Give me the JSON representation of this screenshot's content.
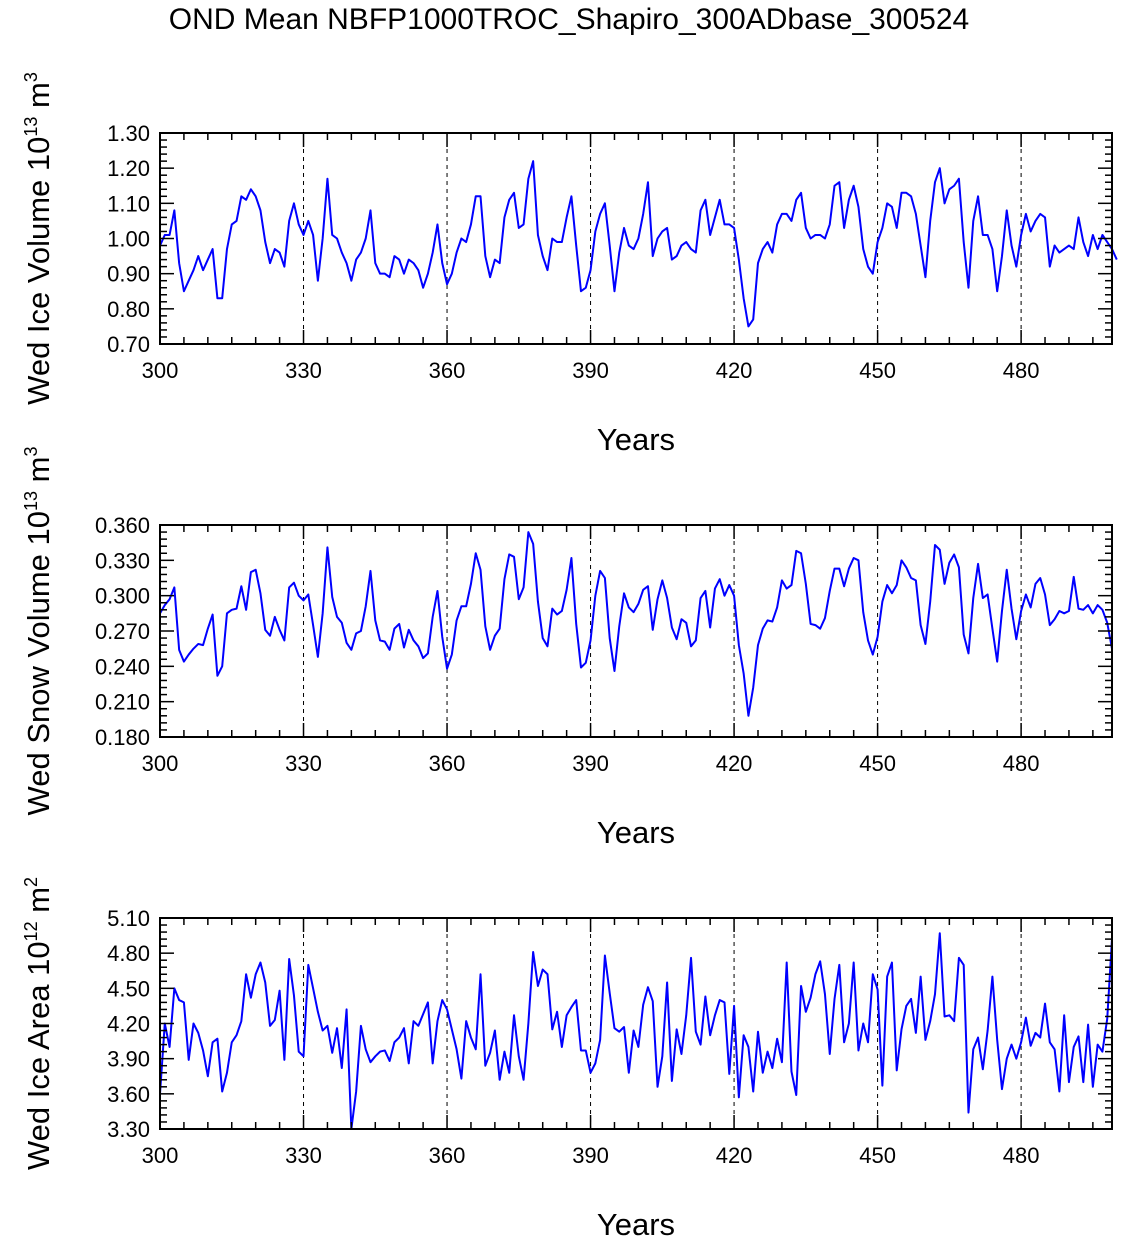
{
  "title": "OND Mean NBFP1000TROC_Shapiro_300ADbase_300524",
  "chart_data": [
    {
      "type": "line",
      "ylabel_main": "Wed Ice Volume 10",
      "ylabel_exp": "13",
      "ylabel_unit": " m",
      "ylabel_unit_exp": "3",
      "xlabel": "Years",
      "xlim": [
        300,
        499
      ],
      "ylim": [
        0.7,
        1.3
      ],
      "yticks": [
        "0.70",
        "0.80",
        "0.90",
        "1.00",
        "1.10",
        "1.20",
        "1.30"
      ],
      "ytick_values": [
        0.7,
        0.8,
        0.9,
        1.0,
        1.1,
        1.2,
        1.3
      ],
      "xticks": [
        "300",
        "330",
        "360",
        "390",
        "420",
        "450",
        "480"
      ],
      "xtick_values": [
        300,
        330,
        360,
        390,
        420,
        450,
        480
      ],
      "vlines": [
        330,
        360,
        390,
        420,
        450,
        480
      ],
      "line_color": "#0000ff",
      "series": [
        {
          "name": "Wed Ice Volume",
          "x_start": 300,
          "values": [
            0.98,
            1.01,
            1.01,
            1.08,
            0.93,
            0.85,
            0.88,
            0.91,
            0.95,
            0.91,
            0.94,
            0.97,
            0.83,
            0.83,
            0.97,
            1.04,
            1.05,
            1.12,
            1.11,
            1.14,
            1.12,
            1.08,
            0.99,
            0.93,
            0.97,
            0.96,
            0.92,
            1.05,
            1.1,
            1.04,
            1.01,
            1.05,
            1.01,
            0.88,
            1.0,
            1.17,
            1.01,
            1.0,
            0.96,
            0.93,
            0.88,
            0.94,
            0.96,
            1.0,
            1.08,
            0.93,
            0.9,
            0.9,
            0.89,
            0.95,
            0.94,
            0.9,
            0.94,
            0.93,
            0.91,
            0.86,
            0.9,
            0.96,
            1.04,
            0.93,
            0.87,
            0.9,
            0.96,
            1.0,
            0.99,
            1.04,
            1.12,
            1.12,
            0.95,
            0.89,
            0.94,
            0.93,
            1.06,
            1.11,
            1.13,
            1.03,
            1.04,
            1.17,
            1.22,
            1.01,
            0.95,
            0.91,
            1.0,
            0.99,
            0.99,
            1.06,
            1.12,
            0.98,
            0.85,
            0.86,
            0.91,
            1.02,
            1.07,
            1.1,
            0.98,
            0.85,
            0.96,
            1.03,
            0.98,
            0.97,
            1.0,
            1.07,
            1.16,
            0.95,
            1.0,
            1.02,
            1.03,
            0.94,
            0.95,
            0.98,
            0.99,
            0.97,
            0.96,
            1.08,
            1.11,
            1.01,
            1.06,
            1.11,
            1.04,
            1.04,
            1.03,
            0.94,
            0.83,
            0.75,
            0.77,
            0.93,
            0.97,
            0.99,
            0.96,
            1.04,
            1.07,
            1.07,
            1.05,
            1.11,
            1.13,
            1.03,
            1.0,
            1.01,
            1.01,
            1.0,
            1.04,
            1.15,
            1.16,
            1.03,
            1.11,
            1.15,
            1.09,
            0.97,
            0.92,
            0.9,
            0.99,
            1.03,
            1.1,
            1.09,
            1.03,
            1.13,
            1.13,
            1.12,
            1.07,
            0.98,
            0.89,
            1.05,
            1.16,
            1.2,
            1.1,
            1.14,
            1.15,
            1.17,
            0.99,
            0.86,
            1.05,
            1.12,
            1.01,
            1.01,
            0.97,
            0.85,
            0.95,
            1.08,
            0.98,
            0.92,
            1.01,
            1.07,
            1.02,
            1.05,
            1.07,
            1.06,
            0.92,
            0.98,
            0.96,
            0.97,
            0.98,
            0.97,
            1.06,
            0.99,
            0.95,
            1.01,
            0.97,
            1.01,
            0.99,
            0.97,
            0.94
          ]
        }
      ]
    },
    {
      "type": "line",
      "ylabel_main": "Wed Snow Volume 10",
      "ylabel_exp": "13",
      "ylabel_unit": " m",
      "ylabel_unit_exp": "3",
      "xlabel": "Years",
      "xlim": [
        300,
        499
      ],
      "ylim": [
        0.18,
        0.36
      ],
      "yticks": [
        "0.180",
        "0.210",
        "0.240",
        "0.270",
        "0.300",
        "0.330",
        "0.360"
      ],
      "ytick_values": [
        0.18,
        0.21,
        0.24,
        0.27,
        0.3,
        0.33,
        0.36
      ],
      "xticks": [
        "300",
        "330",
        "360",
        "390",
        "420",
        "450",
        "480"
      ],
      "xtick_values": [
        300,
        330,
        360,
        390,
        420,
        450,
        480
      ],
      "vlines": [
        330,
        360,
        390,
        420,
        450,
        480
      ],
      "line_color": "#0000ff",
      "series": [
        {
          "name": "Wed Snow Volume",
          "x_start": 300,
          "values": [
            0.285,
            0.292,
            0.297,
            0.307,
            0.254,
            0.244,
            0.25,
            0.255,
            0.259,
            0.258,
            0.272,
            0.284,
            0.232,
            0.24,
            0.285,
            0.288,
            0.289,
            0.308,
            0.288,
            0.32,
            0.322,
            0.302,
            0.271,
            0.266,
            0.282,
            0.271,
            0.262,
            0.307,
            0.311,
            0.3,
            0.296,
            0.301,
            0.275,
            0.248,
            0.285,
            0.341,
            0.299,
            0.282,
            0.277,
            0.26,
            0.254,
            0.268,
            0.27,
            0.291,
            0.321,
            0.279,
            0.262,
            0.261,
            0.254,
            0.272,
            0.276,
            0.256,
            0.271,
            0.262,
            0.257,
            0.247,
            0.251,
            0.282,
            0.304,
            0.265,
            0.238,
            0.25,
            0.279,
            0.291,
            0.291,
            0.31,
            0.336,
            0.322,
            0.274,
            0.254,
            0.266,
            0.272,
            0.314,
            0.335,
            0.333,
            0.297,
            0.307,
            0.354,
            0.344,
            0.295,
            0.264,
            0.257,
            0.289,
            0.284,
            0.287,
            0.305,
            0.332,
            0.276,
            0.239,
            0.243,
            0.262,
            0.3,
            0.321,
            0.315,
            0.264,
            0.236,
            0.274,
            0.302,
            0.29,
            0.286,
            0.293,
            0.305,
            0.308,
            0.271,
            0.297,
            0.313,
            0.298,
            0.273,
            0.263,
            0.28,
            0.277,
            0.257,
            0.262,
            0.298,
            0.304,
            0.273,
            0.306,
            0.314,
            0.3,
            0.309,
            0.3,
            0.258,
            0.234,
            0.198,
            0.222,
            0.258,
            0.272,
            0.279,
            0.278,
            0.29,
            0.313,
            0.306,
            0.309,
            0.338,
            0.336,
            0.31,
            0.276,
            0.275,
            0.272,
            0.281,
            0.304,
            0.323,
            0.323,
            0.308,
            0.323,
            0.332,
            0.33,
            0.286,
            0.262,
            0.25,
            0.265,
            0.295,
            0.309,
            0.302,
            0.309,
            0.33,
            0.324,
            0.315,
            0.313,
            0.275,
            0.259,
            0.295,
            0.343,
            0.339,
            0.31,
            0.328,
            0.335,
            0.324,
            0.267,
            0.251,
            0.298,
            0.327,
            0.298,
            0.301,
            0.272,
            0.244,
            0.287,
            0.322,
            0.289,
            0.263,
            0.287,
            0.301,
            0.29,
            0.31,
            0.315,
            0.301,
            0.275,
            0.28,
            0.287,
            0.285,
            0.287,
            0.316,
            0.289,
            0.288,
            0.292,
            0.285,
            0.292,
            0.288,
            0.277,
            0.255
          ]
        }
      ]
    },
    {
      "type": "line",
      "ylabel_main": "Wed Ice Area 10",
      "ylabel_exp": "12",
      "ylabel_unit": " m",
      "ylabel_unit_exp": "2",
      "xlabel": "Years",
      "xlim": [
        300,
        499
      ],
      "ylim": [
        3.3,
        5.1
      ],
      "yticks": [
        "3.30",
        "3.60",
        "3.90",
        "4.20",
        "4.50",
        "4.80",
        "5.10"
      ],
      "ytick_values": [
        3.3,
        3.6,
        3.9,
        4.2,
        4.5,
        4.8,
        5.1
      ],
      "xticks": [
        "300",
        "330",
        "360",
        "390",
        "420",
        "450",
        "480"
      ],
      "xtick_values": [
        300,
        330,
        360,
        390,
        420,
        450,
        480
      ],
      "vlines": [
        330,
        360,
        390,
        420,
        450,
        480
      ],
      "line_color": "#0000ff",
      "series": [
        {
          "name": "Wed Ice Area",
          "x_start": 300,
          "values": [
            3.6,
            4.2,
            4.0,
            4.5,
            4.4,
            4.38,
            3.89,
            4.2,
            4.12,
            3.97,
            3.75,
            4.04,
            4.07,
            3.62,
            3.78,
            4.04,
            4.1,
            4.22,
            4.62,
            4.42,
            4.62,
            4.72,
            4.55,
            4.18,
            4.23,
            4.48,
            3.89,
            4.75,
            4.44,
            3.96,
            3.92,
            4.7,
            4.5,
            4.3,
            4.14,
            4.18,
            3.95,
            4.16,
            3.82,
            4.32,
            3.3,
            3.62,
            4.18,
            3.98,
            3.87,
            3.92,
            3.96,
            3.97,
            3.88,
            4.04,
            4.08,
            4.16,
            3.86,
            4.22,
            4.18,
            4.28,
            4.38,
            3.86,
            4.22,
            4.4,
            4.32,
            4.15,
            3.98,
            3.73,
            4.22,
            4.08,
            3.98,
            4.62,
            3.84,
            3.95,
            4.14,
            3.72,
            3.96,
            3.78,
            4.27,
            3.92,
            3.72,
            4.2,
            4.81,
            4.52,
            4.66,
            4.62,
            4.15,
            4.3,
            4.0,
            4.27,
            4.34,
            4.4,
            3.97,
            3.97,
            3.78,
            3.86,
            4.06,
            4.78,
            4.46,
            4.16,
            4.13,
            4.17,
            3.78,
            4.14,
            4.0,
            4.36,
            4.51,
            4.39,
            3.66,
            3.92,
            4.55,
            3.71,
            4.15,
            3.94,
            4.27,
            4.76,
            4.13,
            4.02,
            4.43,
            4.1,
            4.27,
            4.4,
            4.38,
            3.77,
            4.35,
            3.57,
            4.1,
            4.0,
            3.62,
            4.13,
            3.78,
            3.96,
            3.82,
            4.07,
            3.87,
            4.72,
            3.79,
            3.59,
            4.52,
            4.3,
            4.42,
            4.62,
            4.73,
            4.45,
            3.94,
            4.41,
            4.7,
            4.04,
            4.2,
            4.72,
            3.97,
            4.2,
            4.04,
            4.62,
            4.49,
            3.67,
            4.6,
            4.72,
            3.8,
            4.15,
            4.35,
            4.41,
            4.12,
            4.6,
            4.06,
            4.22,
            4.45,
            4.97,
            4.26,
            4.27,
            4.22,
            4.76,
            4.7,
            3.44,
            3.98,
            4.08,
            3.81,
            4.14,
            4.6,
            4.06,
            3.64,
            3.9,
            4.02,
            3.9,
            4.04,
            4.25,
            4.01,
            4.12,
            4.08,
            4.37,
            4.04,
            3.98,
            3.62,
            4.27,
            3.7,
            4.0,
            4.09,
            3.7,
            4.19,
            3.66,
            4.02,
            3.96,
            4.24,
            4.92
          ]
        }
      ]
    }
  ]
}
